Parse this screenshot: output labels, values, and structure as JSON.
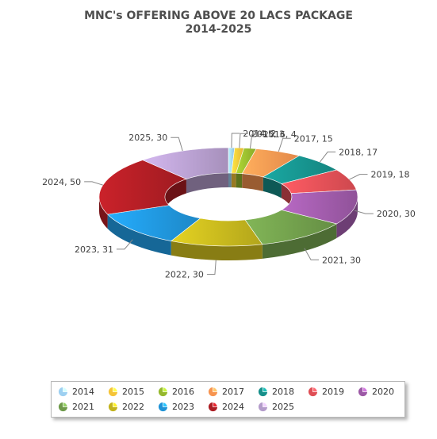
{
  "chart_data": {
    "type": "pie",
    "style": "3d-donut",
    "title": "MNC's OFFERING ABOVE 20 LACS PACKAGE",
    "subtitle": "2014-2025",
    "legend_position": "bottom",
    "slices": [
      {
        "label": "2014",
        "value": 2,
        "color": "#9dd0f1"
      },
      {
        "label": "2015",
        "value": 3,
        "color": "#f5c438"
      },
      {
        "label": "2016",
        "value": 4,
        "color": "#95b82d"
      },
      {
        "label": "2017",
        "value": 15,
        "color": "#f7944f"
      },
      {
        "label": "2018",
        "value": 17,
        "color": "#168f8a"
      },
      {
        "label": "2019",
        "value": 18,
        "color": "#df4e55"
      },
      {
        "label": "2020",
        "value": 30,
        "color": "#9c59a6"
      },
      {
        "label": "2021",
        "value": 30,
        "color": "#6e9a4a"
      },
      {
        "label": "2022",
        "value": 30,
        "color": "#c2b31d"
      },
      {
        "label": "2023",
        "value": 31,
        "color": "#1f93d7"
      },
      {
        "label": "2024",
        "value": 50,
        "color": "#ac1d24"
      },
      {
        "label": "2025",
        "value": 30,
        "color": "#b49ccb"
      }
    ]
  }
}
